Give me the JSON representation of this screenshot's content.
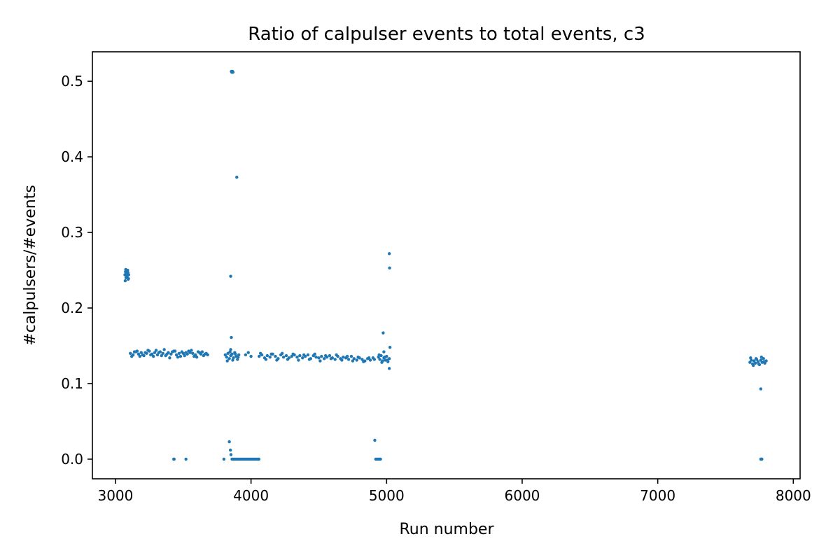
{
  "chart_data": {
    "type": "scatter",
    "title": "Ratio of calpulser events to total events, c3",
    "xlabel": "Run number",
    "ylabel": "#calpulsers/#events",
    "xlim": [
      2830,
      8050
    ],
    "ylim": [
      -0.026,
      0.539
    ],
    "xticks": [
      3000,
      4000,
      5000,
      6000,
      7000,
      8000
    ],
    "yticks": [
      0.0,
      0.1,
      0.2,
      0.3,
      0.4,
      0.5
    ],
    "ytick_labels": [
      "0.0",
      "0.1",
      "0.2",
      "0.3",
      "0.4",
      "0.5"
    ],
    "grid": false,
    "legend": "none",
    "color": "#1f77b4",
    "series": [
      {
        "x": [
          3070,
          3074,
          3078,
          3082,
          3086,
          3090,
          3094,
          3098,
          3072,
          3080,
          3088,
          3096,
          3076,
          3084,
          3092,
          3110,
          3130,
          3150,
          3170,
          3190,
          3210,
          3230,
          3250,
          3270,
          3290,
          3310,
          3330,
          3350,
          3370,
          3390,
          3410,
          3430,
          3450,
          3470,
          3490,
          3510,
          3530,
          3550,
          3570,
          3590,
          3610,
          3630,
          3650,
          3670,
          3120,
          3160,
          3200,
          3240,
          3280,
          3320,
          3360,
          3400,
          3440,
          3480,
          3520,
          3560,
          3600,
          3640,
          3680,
          3140,
          3180,
          3220,
          3260,
          3300,
          3340,
          3380,
          3420,
          3460,
          3500,
          3540,
          3580,
          3620,
          3660,
          3810,
          3820,
          3830,
          3840,
          3850,
          3860,
          3870,
          3880,
          3890,
          3900,
          3910,
          3825,
          3845,
          3865,
          3885,
          3905,
          3855,
          3858,
          3860,
          3862,
          3864,
          3867,
          3895,
          3850,
          4060,
          4080,
          4100,
          4120,
          4140,
          4160,
          4180,
          4200,
          4220,
          4240,
          4260,
          4280,
          4300,
          4320,
          4340,
          4360,
          4380,
          4400,
          4420,
          4440,
          4460,
          4480,
          4500,
          4520,
          4540,
          4560,
          4580,
          4600,
          4620,
          4640,
          4660,
          4680,
          4700,
          4720,
          4740,
          4760,
          4780,
          4800,
          4820,
          4840,
          4860,
          4880,
          4900,
          4070,
          4110,
          4150,
          4190,
          4230,
          4270,
          4310,
          4350,
          4390,
          4430,
          4470,
          4510,
          4550,
          4590,
          4630,
          4670,
          4710,
          4750,
          4790,
          4830,
          4870,
          4910,
          3960,
          3980,
          4000,
          4940,
          4950,
          4960,
          4970,
          4980,
          4990,
          5000,
          5010,
          5020,
          4945,
          4965,
          4985,
          5005,
          4975,
          4980,
          5020,
          5022,
          5025,
          5020,
          7680,
          7690,
          7700,
          7710,
          7720,
          7730,
          7740,
          7750,
          7760,
          7770,
          7780,
          7790,
          7800,
          7685,
          7705,
          7725,
          7745,
          7765,
          7785,
          7760,
          3430,
          3433,
          3520,
          3800,
          3840,
          3848,
          3852,
          3860,
          3870,
          3880,
          3890,
          3900,
          3910,
          3920,
          3930,
          3940,
          3950,
          3960,
          3970,
          3980,
          3990,
          4000,
          4010,
          4020,
          4030,
          4040,
          4050,
          4058,
          3855,
          3850,
          4920,
          4930,
          4940,
          4950,
          4955,
          4913,
          7760,
          7764,
          7768
        ],
        "y": [
          0.244,
          0.248,
          0.24,
          0.246,
          0.242,
          0.25,
          0.238,
          0.244,
          0.236,
          0.241,
          0.245,
          0.239,
          0.251,
          0.243,
          0.247,
          0.14,
          0.138,
          0.142,
          0.139,
          0.141,
          0.137,
          0.14,
          0.143,
          0.139,
          0.141,
          0.138,
          0.142,
          0.14,
          0.137,
          0.141,
          0.139,
          0.143,
          0.138,
          0.14,
          0.142,
          0.137,
          0.139,
          0.141,
          0.14,
          0.138,
          0.142,
          0.139,
          0.137,
          0.14,
          0.136,
          0.143,
          0.138,
          0.144,
          0.136,
          0.141,
          0.145,
          0.134,
          0.143,
          0.136,
          0.141,
          0.144,
          0.135,
          0.142,
          0.138,
          0.142,
          0.136,
          0.141,
          0.138,
          0.144,
          0.137,
          0.139,
          0.142,
          0.135,
          0.14,
          0.143,
          0.136,
          0.141,
          0.139,
          0.138,
          0.135,
          0.14,
          0.133,
          0.137,
          0.139,
          0.134,
          0.141,
          0.136,
          0.132,
          0.138,
          0.13,
          0.142,
          0.131,
          0.139,
          0.135,
          0.513,
          0.512,
          0.513,
          0.512,
          0.513,
          0.512,
          0.373,
          0.242,
          0.136,
          0.138,
          0.134,
          0.137,
          0.135,
          0.139,
          0.136,
          0.133,
          0.138,
          0.135,
          0.137,
          0.134,
          0.136,
          0.138,
          0.135,
          0.137,
          0.134,
          0.136,
          0.138,
          0.133,
          0.137,
          0.135,
          0.134,
          0.136,
          0.133,
          0.135,
          0.137,
          0.134,
          0.132,
          0.136,
          0.133,
          0.135,
          0.134,
          0.132,
          0.136,
          0.133,
          0.131,
          0.134,
          0.132,
          0.13,
          0.133,
          0.131,
          0.134,
          0.14,
          0.132,
          0.139,
          0.131,
          0.14,
          0.132,
          0.139,
          0.131,
          0.138,
          0.132,
          0.139,
          0.13,
          0.137,
          0.133,
          0.138,
          0.131,
          0.136,
          0.13,
          0.135,
          0.129,
          0.134,
          0.132,
          0.138,
          0.141,
          0.136,
          0.135,
          0.132,
          0.137,
          0.13,
          0.134,
          0.131,
          0.136,
          0.129,
          0.133,
          0.138,
          0.128,
          0.135,
          0.131,
          0.167,
          0.142,
          0.272,
          0.253,
          0.148,
          0.12,
          0.128,
          0.131,
          0.126,
          0.13,
          0.127,
          0.132,
          0.129,
          0.125,
          0.131,
          0.128,
          0.133,
          0.127,
          0.13,
          0.134,
          0.124,
          0.133,
          0.126,
          0.135,
          0.129,
          0.093,
          0.0,
          0.0,
          0.0,
          0.0,
          0.023,
          0.012,
          0.006,
          0.0,
          0.0,
          0.0,
          0.0,
          0.0,
          0.0,
          0.0,
          0.0,
          0.0,
          0.0,
          0.0,
          0.0,
          0.0,
          0.0,
          0.0,
          0.0,
          0.0,
          0.0,
          0.0,
          0.0,
          0.0,
          0.161,
          0.145,
          0.0,
          0.0,
          0.0,
          0.0,
          0.0,
          0.025,
          0.0,
          0.0,
          0.0
        ]
      }
    ]
  }
}
